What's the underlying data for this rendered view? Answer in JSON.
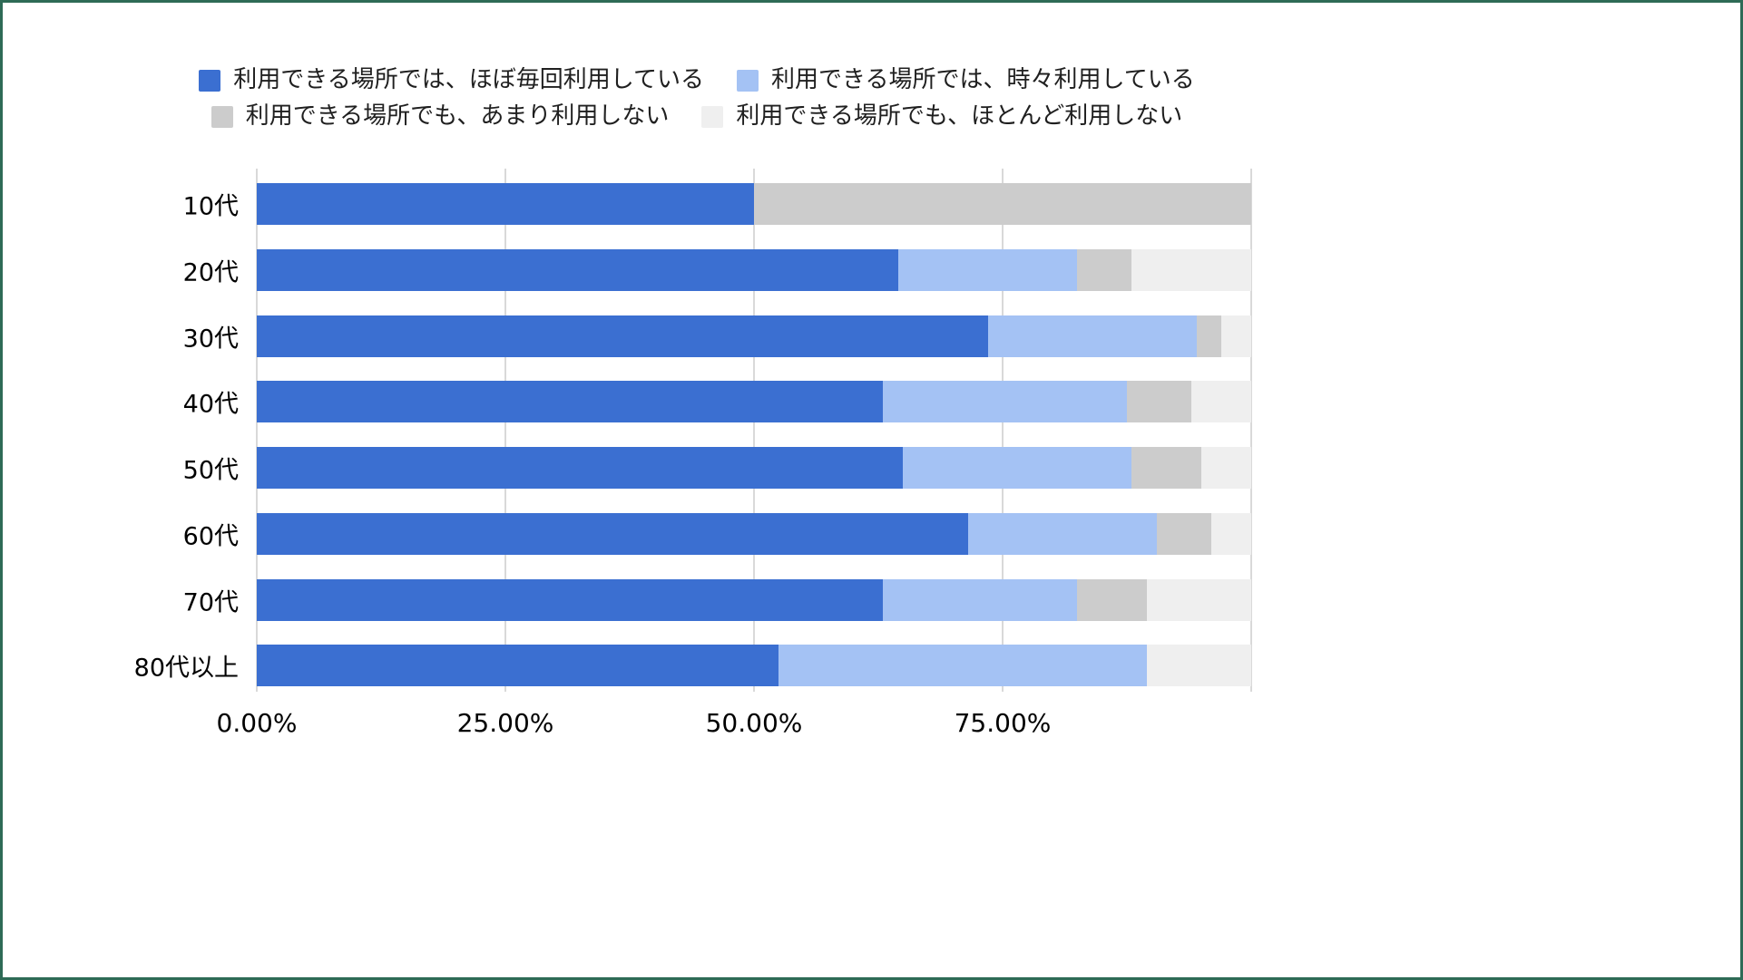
{
  "frame": {
    "border_color": "#2e6b56",
    "background": "#ffffff"
  },
  "legend": {
    "items": [
      {
        "label": "利用できる場所では、ほぼ毎回利用している",
        "color": "#3b6fd1"
      },
      {
        "label": "利用できる場所では、時々利用している",
        "color": "#a4c2f4"
      },
      {
        "label": "利用できる場所でも、あまり利用しない",
        "color": "#cccccc"
      },
      {
        "label": "利用できる場所でも、ほとんど利用しない",
        "color": "#efefef"
      }
    ],
    "rows": [
      [
        0,
        1
      ],
      [
        2,
        3
      ]
    ]
  },
  "chart_data": {
    "type": "bar",
    "orientation": "horizontal",
    "stacked": true,
    "title": "",
    "xlabel": "",
    "ylabel": "",
    "categories": [
      "10代",
      "20代",
      "30代",
      "40代",
      "50代",
      "60代",
      "70代",
      "80代以上"
    ],
    "series": [
      {
        "name": "利用できる場所では、ほぼ毎回利用している",
        "color": "#3b6fd1",
        "values": [
          50.0,
          64.5,
          73.5,
          63.0,
          65.0,
          71.5,
          63.0,
          52.5
        ]
      },
      {
        "name": "利用できる場所では、時々利用している",
        "color": "#a4c2f4",
        "values": [
          0,
          18.0,
          21.0,
          24.5,
          23.0,
          19.0,
          19.5,
          37.0
        ]
      },
      {
        "name": "利用できる場所でも、あまり利用しない",
        "color": "#cccccc",
        "values": [
          50.0,
          5.5,
          2.5,
          6.5,
          7.0,
          5.5,
          7.0,
          0
        ]
      },
      {
        "name": "利用できる場所でも、ほとんど利用しない",
        "color": "#efefef",
        "values": [
          0,
          12.0,
          3.0,
          6.0,
          5.0,
          4.0,
          10.5,
          10.5
        ]
      }
    ],
    "x_ticks": [
      {
        "label": "0.00%",
        "value": 0
      },
      {
        "label": "25.00%",
        "value": 25
      },
      {
        "label": "50.00%",
        "value": 50
      },
      {
        "label": "75.00%",
        "value": 75
      }
    ],
    "xlim": [
      0,
      100
    ],
    "gridlines": [
      0,
      25,
      50,
      75,
      100
    ],
    "grid_color": "#d9d9d9",
    "legend_position": "top"
  }
}
